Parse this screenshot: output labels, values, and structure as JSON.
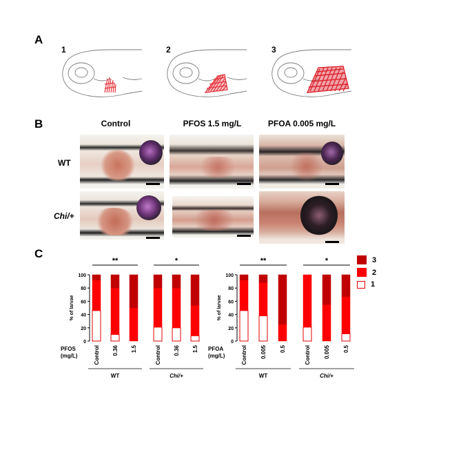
{
  "panelA": {
    "label": "A",
    "sketches": [
      {
        "number": "1",
        "level": 1
      },
      {
        "number": "2",
        "level": 2
      },
      {
        "number": "3",
        "level": 3
      }
    ]
  },
  "panelB": {
    "label": "B",
    "columns": [
      "Control",
      "PFOS 1.5 mg/L",
      "PFOA 0.005 mg/L"
    ],
    "rows": [
      {
        "label": "WT",
        "italic": false
      },
      {
        "label": "Chi/+",
        "italic": true
      }
    ]
  },
  "panelC": {
    "label": "C",
    "legend": [
      {
        "label": "3",
        "color": "#c00000"
      },
      {
        "label": "2",
        "color": "#ff0000"
      },
      {
        "label": "1",
        "color": "#ffffff"
      }
    ]
  },
  "chart_data": [
    {
      "type": "bar",
      "stacked": true,
      "ylabel": "% of larvae",
      "ylim": [
        0,
        100
      ],
      "yticks": [
        0,
        20,
        40,
        60,
        80,
        100
      ],
      "treatment_label": "PFOS (mg/L)",
      "categories": [
        "Control",
        "0.36",
        "1.5",
        "Control",
        "0.36",
        "1.5"
      ],
      "groups": [
        {
          "label": "WT",
          "italic": false
        },
        {
          "label": "Chi/+",
          "italic": true
        }
      ],
      "series": [
        {
          "name": "1",
          "values": [
            46,
            10,
            0,
            21,
            20,
            8
          ]
        },
        {
          "name": "2",
          "values": [
            46,
            70,
            50,
            59,
            60,
            46
          ]
        },
        {
          "name": "3",
          "values": [
            8,
            20,
            50,
            20,
            20,
            46
          ]
        }
      ],
      "significance": [
        "**",
        "*"
      ]
    },
    {
      "type": "bar",
      "stacked": true,
      "ylabel": "% of larvae",
      "ylim": [
        0,
        100
      ],
      "yticks": [
        0,
        20,
        40,
        60,
        80,
        100
      ],
      "treatment_label": "PFOA (mg/L)",
      "categories": [
        "Control",
        "0.005",
        "0.5",
        "Control",
        "0.005",
        "0.5"
      ],
      "groups": [
        {
          "label": "WT",
          "italic": false
        },
        {
          "label": "Chi/+",
          "italic": true
        }
      ],
      "series": [
        {
          "name": "1",
          "values": [
            46,
            38,
            0,
            21,
            0,
            11
          ]
        },
        {
          "name": "2",
          "values": [
            46,
            50,
            25,
            79,
            55,
            56
          ]
        },
        {
          "name": "3",
          "values": [
            8,
            12,
            75,
            0,
            45,
            33
          ]
        }
      ],
      "significance": [
        "**",
        "*"
      ]
    }
  ]
}
